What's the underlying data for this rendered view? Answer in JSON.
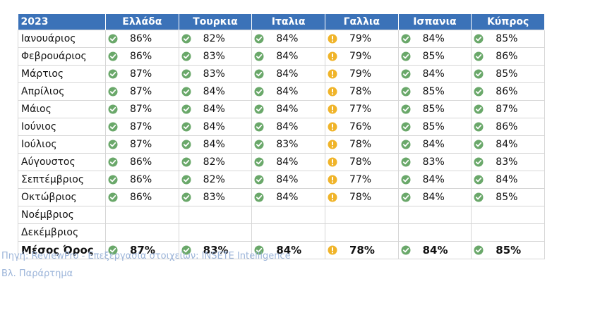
{
  "table": {
    "headers": [
      "2023",
      "Ελλάδα",
      "Τουρκια",
      "Ιταλια",
      "Γαλλια",
      "Ισπανια",
      "Κύπρος"
    ],
    "rows": [
      {
        "month": "Ιανουάριος",
        "cells": [
          {
            "v": "86%",
            "s": "ok"
          },
          {
            "v": "82%",
            "s": "ok"
          },
          {
            "v": "84%",
            "s": "ok"
          },
          {
            "v": "79%",
            "s": "warn"
          },
          {
            "v": "84%",
            "s": "ok"
          },
          {
            "v": "85%",
            "s": "ok"
          }
        ]
      },
      {
        "month": "Φεβρουάριος",
        "cells": [
          {
            "v": "86%",
            "s": "ok"
          },
          {
            "v": "83%",
            "s": "ok"
          },
          {
            "v": "84%",
            "s": "ok"
          },
          {
            "v": "79%",
            "s": "warn"
          },
          {
            "v": "85%",
            "s": "ok"
          },
          {
            "v": "86%",
            "s": "ok"
          }
        ]
      },
      {
        "month": "Μάρτιος",
        "cells": [
          {
            "v": "87%",
            "s": "ok"
          },
          {
            "v": "83%",
            "s": "ok"
          },
          {
            "v": "84%",
            "s": "ok"
          },
          {
            "v": "79%",
            "s": "warn"
          },
          {
            "v": "84%",
            "s": "ok"
          },
          {
            "v": "85%",
            "s": "ok"
          }
        ]
      },
      {
        "month": "Απρίλιος",
        "cells": [
          {
            "v": "87%",
            "s": "ok"
          },
          {
            "v": "84%",
            "s": "ok"
          },
          {
            "v": "84%",
            "s": "ok"
          },
          {
            "v": "78%",
            "s": "warn"
          },
          {
            "v": "85%",
            "s": "ok"
          },
          {
            "v": "86%",
            "s": "ok"
          }
        ]
      },
      {
        "month": "Μάιος",
        "cells": [
          {
            "v": "87%",
            "s": "ok"
          },
          {
            "v": "84%",
            "s": "ok"
          },
          {
            "v": "84%",
            "s": "ok"
          },
          {
            "v": "77%",
            "s": "warn"
          },
          {
            "v": "85%",
            "s": "ok"
          },
          {
            "v": "87%",
            "s": "ok"
          }
        ]
      },
      {
        "month": "Ιούνιος",
        "cells": [
          {
            "v": "87%",
            "s": "ok"
          },
          {
            "v": "84%",
            "s": "ok"
          },
          {
            "v": "84%",
            "s": "ok"
          },
          {
            "v": "76%",
            "s": "warn"
          },
          {
            "v": "85%",
            "s": "ok"
          },
          {
            "v": "86%",
            "s": "ok"
          }
        ]
      },
      {
        "month": "Ιούλιος",
        "cells": [
          {
            "v": "87%",
            "s": "ok"
          },
          {
            "v": "84%",
            "s": "ok"
          },
          {
            "v": "83%",
            "s": "ok"
          },
          {
            "v": "78%",
            "s": "warn"
          },
          {
            "v": "84%",
            "s": "ok"
          },
          {
            "v": "84%",
            "s": "ok"
          }
        ]
      },
      {
        "month": "Αύγουστος",
        "cells": [
          {
            "v": "86%",
            "s": "ok"
          },
          {
            "v": "82%",
            "s": "ok"
          },
          {
            "v": "84%",
            "s": "ok"
          },
          {
            "v": "78%",
            "s": "warn"
          },
          {
            "v": "83%",
            "s": "ok"
          },
          {
            "v": "83%",
            "s": "ok"
          }
        ]
      },
      {
        "month": "Σεπτέμβριος",
        "cells": [
          {
            "v": "86%",
            "s": "ok"
          },
          {
            "v": "82%",
            "s": "ok"
          },
          {
            "v": "84%",
            "s": "ok"
          },
          {
            "v": "77%",
            "s": "warn"
          },
          {
            "v": "84%",
            "s": "ok"
          },
          {
            "v": "84%",
            "s": "ok"
          }
        ]
      },
      {
        "month": "Οκτώβριος",
        "cells": [
          {
            "v": "86%",
            "s": "ok"
          },
          {
            "v": "83%",
            "s": "ok"
          },
          {
            "v": "84%",
            "s": "ok"
          },
          {
            "v": "78%",
            "s": "warn"
          },
          {
            "v": "84%",
            "s": "ok"
          },
          {
            "v": "85%",
            "s": "ok"
          }
        ]
      },
      {
        "month": "Νοέμβριος",
        "cells": [
          null,
          null,
          null,
          null,
          null,
          null
        ]
      },
      {
        "month": "Δεκέμβριος",
        "cells": [
          null,
          null,
          null,
          null,
          null,
          null
        ]
      }
    ],
    "average": {
      "month": "Μέσος Όρος",
      "cells": [
        {
          "v": "87%",
          "s": "ok"
        },
        {
          "v": "83%",
          "s": "ok"
        },
        {
          "v": "84%",
          "s": "ok"
        },
        {
          "v": "78%",
          "s": "warn"
        },
        {
          "v": "84%",
          "s": "ok"
        },
        {
          "v": "85%",
          "s": "ok"
        }
      ]
    }
  },
  "notes": {
    "source": "Πηγή:  ReviewPro - Επεξεργασία στοιχείων: INSETE Intelligence",
    "appendix": "Βλ. Παράρτημα"
  },
  "icons": {
    "ok": {
      "name": "check-circle-icon",
      "color": "#6aa86a"
    },
    "warn": {
      "name": "warning-circle-icon",
      "color": "#f0b429"
    }
  },
  "colors": {
    "header_bg": "#3b72b8",
    "note_text": "#9bb4d9"
  }
}
